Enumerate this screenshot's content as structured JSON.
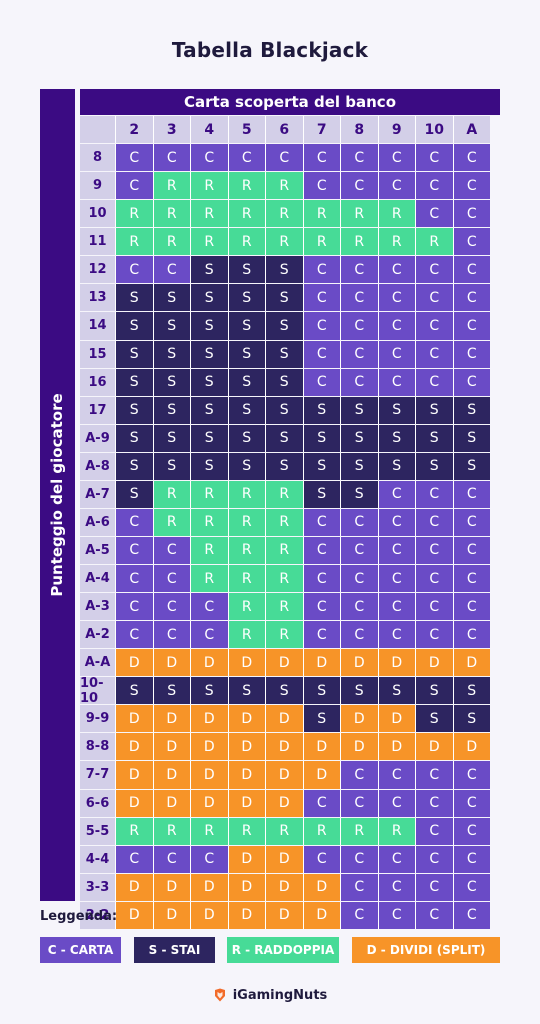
{
  "title": "Tabella Blackjack",
  "header_label": "Carta scoperta del banco",
  "side_label": "Punteggio del giocatore",
  "dealer_cards": [
    "2",
    "3",
    "4",
    "5",
    "6",
    "7",
    "8",
    "9",
    "10",
    "A"
  ],
  "player_hands": [
    {
      "label": "8",
      "actions": [
        "C",
        "C",
        "C",
        "C",
        "C",
        "C",
        "C",
        "C",
        "C",
        "C"
      ]
    },
    {
      "label": "9",
      "actions": [
        "C",
        "R",
        "R",
        "R",
        "R",
        "C",
        "C",
        "C",
        "C",
        "C"
      ]
    },
    {
      "label": "10",
      "actions": [
        "R",
        "R",
        "R",
        "R",
        "R",
        "R",
        "R",
        "R",
        "C",
        "C"
      ]
    },
    {
      "label": "11",
      "actions": [
        "R",
        "R",
        "R",
        "R",
        "R",
        "R",
        "R",
        "R",
        "R",
        "C"
      ]
    },
    {
      "label": "12",
      "actions": [
        "C",
        "C",
        "S",
        "S",
        "S",
        "C",
        "C",
        "C",
        "C",
        "C"
      ]
    },
    {
      "label": "13",
      "actions": [
        "S",
        "S",
        "S",
        "S",
        "S",
        "C",
        "C",
        "C",
        "C",
        "C"
      ]
    },
    {
      "label": "14",
      "actions": [
        "S",
        "S",
        "S",
        "S",
        "S",
        "C",
        "C",
        "C",
        "C",
        "C"
      ]
    },
    {
      "label": "15",
      "actions": [
        "S",
        "S",
        "S",
        "S",
        "S",
        "C",
        "C",
        "C",
        "C",
        "C"
      ]
    },
    {
      "label": "16",
      "actions": [
        "S",
        "S",
        "S",
        "S",
        "S",
        "C",
        "C",
        "C",
        "C",
        "C"
      ]
    },
    {
      "label": "17",
      "actions": [
        "S",
        "S",
        "S",
        "S",
        "S",
        "S",
        "S",
        "S",
        "S",
        "S"
      ]
    },
    {
      "label": "A-9",
      "actions": [
        "S",
        "S",
        "S",
        "S",
        "S",
        "S",
        "S",
        "S",
        "S",
        "S"
      ]
    },
    {
      "label": "A-8",
      "actions": [
        "S",
        "S",
        "S",
        "S",
        "S",
        "S",
        "S",
        "S",
        "S",
        "S"
      ]
    },
    {
      "label": "A-7",
      "actions": [
        "S",
        "R",
        "R",
        "R",
        "R",
        "S",
        "S",
        "C",
        "C",
        "C"
      ]
    },
    {
      "label": "A-6",
      "actions": [
        "C",
        "R",
        "R",
        "R",
        "R",
        "C",
        "C",
        "C",
        "C",
        "C"
      ]
    },
    {
      "label": "A-5",
      "actions": [
        "C",
        "C",
        "R",
        "R",
        "R",
        "C",
        "C",
        "C",
        "C",
        "C"
      ]
    },
    {
      "label": "A-4",
      "actions": [
        "C",
        "C",
        "R",
        "R",
        "R",
        "C",
        "C",
        "C",
        "C",
        "C"
      ]
    },
    {
      "label": "A-3",
      "actions": [
        "C",
        "C",
        "C",
        "R",
        "R",
        "C",
        "C",
        "C",
        "C",
        "C"
      ]
    },
    {
      "label": "A-2",
      "actions": [
        "C",
        "C",
        "C",
        "R",
        "R",
        "C",
        "C",
        "C",
        "C",
        "C"
      ]
    },
    {
      "label": "A-A",
      "actions": [
        "D",
        "D",
        "D",
        "D",
        "D",
        "D",
        "D",
        "D",
        "D",
        "D"
      ]
    },
    {
      "label": "10-10",
      "actions": [
        "S",
        "S",
        "S",
        "S",
        "S",
        "S",
        "S",
        "S",
        "S",
        "S"
      ]
    },
    {
      "label": "9-9",
      "actions": [
        "D",
        "D",
        "D",
        "D",
        "D",
        "S",
        "D",
        "D",
        "S",
        "S"
      ]
    },
    {
      "label": "8-8",
      "actions": [
        "D",
        "D",
        "D",
        "D",
        "D",
        "D",
        "D",
        "D",
        "D",
        "D"
      ]
    },
    {
      "label": "7-7",
      "actions": [
        "D",
        "D",
        "D",
        "D",
        "D",
        "D",
        "C",
        "C",
        "C",
        "C"
      ]
    },
    {
      "label": "6-6",
      "actions": [
        "D",
        "D",
        "D",
        "D",
        "D",
        "C",
        "C",
        "C",
        "C",
        "C"
      ]
    },
    {
      "label": "5-5",
      "actions": [
        "R",
        "R",
        "R",
        "R",
        "R",
        "R",
        "R",
        "R",
        "C",
        "C"
      ]
    },
    {
      "label": "4-4",
      "actions": [
        "C",
        "C",
        "C",
        "D",
        "D",
        "C",
        "C",
        "C",
        "C",
        "C"
      ]
    },
    {
      "label": "3-3",
      "actions": [
        "D",
        "D",
        "D",
        "D",
        "D",
        "D",
        "C",
        "C",
        "C",
        "C"
      ]
    },
    {
      "label": "2-2",
      "actions": [
        "D",
        "D",
        "D",
        "D",
        "D",
        "D",
        "C",
        "C",
        "C",
        "C"
      ]
    }
  ],
  "action_colors": {
    "C": "#6a4bc6",
    "S": "#2d2560",
    "R": "#47db97",
    "D": "#f79428"
  },
  "legend_title": "Leggenda:",
  "legend": [
    {
      "code": "C",
      "text": "C - CARTA"
    },
    {
      "code": "S",
      "text": "S - STAI"
    },
    {
      "code": "R",
      "text": "R - RADDOPPIA"
    },
    {
      "code": "D",
      "text": "D - DIVIDI (SPLIT)"
    }
  ],
  "brand": "iGamingNuts",
  "brand_icon": "brand-logo-icon"
}
